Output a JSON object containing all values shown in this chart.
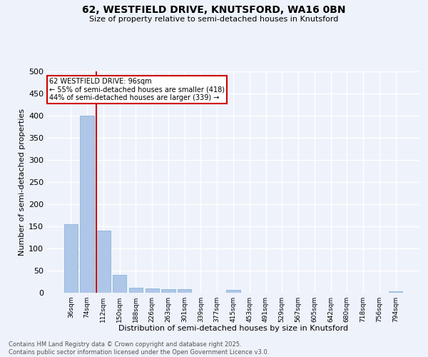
{
  "title1": "62, WESTFIELD DRIVE, KNUTSFORD, WA16 0BN",
  "title2": "Size of property relative to semi-detached houses in Knutsford",
  "xlabel": "Distribution of semi-detached houses by size in Knutsford",
  "ylabel": "Number of semi-detached properties",
  "categories": [
    "36sqm",
    "74sqm",
    "112sqm",
    "150sqm",
    "188sqm",
    "226sqm",
    "263sqm",
    "301sqm",
    "339sqm",
    "377sqm",
    "415sqm",
    "453sqm",
    "491sqm",
    "529sqm",
    "567sqm",
    "605sqm",
    "642sqm",
    "680sqm",
    "718sqm",
    "756sqm",
    "794sqm"
  ],
  "values": [
    155,
    400,
    140,
    40,
    12,
    10,
    8,
    8,
    0,
    0,
    7,
    0,
    0,
    0,
    0,
    0,
    0,
    0,
    0,
    0,
    3
  ],
  "bar_color": "#aec6e8",
  "bar_edge_color": "#7aafd4",
  "vline_x_idx": 2,
  "vline_color": "#cc0000",
  "annotation_text": "62 WESTFIELD DRIVE: 96sqm\n← 55% of semi-detached houses are smaller (418)\n44% of semi-detached houses are larger (339) →",
  "annotation_box_color": "#ffffff",
  "annotation_box_edge": "#cc0000",
  "ylim": [
    0,
    500
  ],
  "yticks": [
    0,
    50,
    100,
    150,
    200,
    250,
    300,
    350,
    400,
    450,
    500
  ],
  "background_color": "#eef2fa",
  "grid_color": "#ffffff",
  "footer": "Contains HM Land Registry data © Crown copyright and database right 2025.\nContains public sector information licensed under the Open Government Licence v3.0."
}
